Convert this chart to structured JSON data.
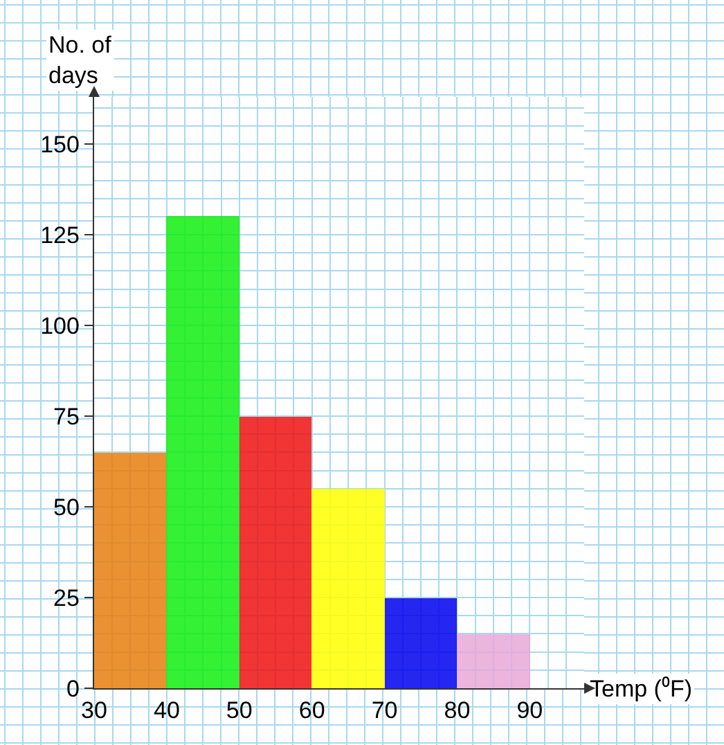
{
  "chart_data": {
    "type": "histogram",
    "xlabel": "Temp (⁰F)",
    "ylabel": "No. of days",
    "bins": [
      30,
      40,
      50,
      60,
      70,
      80,
      90
    ],
    "values": [
      65,
      130,
      75,
      55,
      25,
      15
    ],
    "colors": [
      "#e67e0e",
      "#11ee11",
      "#ee1111",
      "#ffff00",
      "#0000ee",
      "#e8a8d8"
    ],
    "xlim": [
      30,
      97.5
    ],
    "xticks": [
      30,
      40,
      50,
      60,
      70,
      80,
      90
    ],
    "ylim": [
      0,
      163
    ],
    "yticks": [
      0,
      25,
      50,
      75,
      100,
      125,
      150
    ],
    "grid": true
  }
}
